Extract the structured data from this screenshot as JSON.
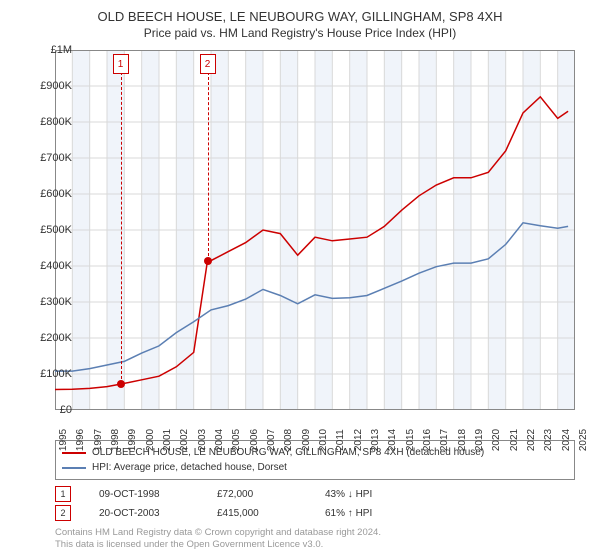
{
  "title": "OLD BEECH HOUSE, LE NEUBOURG WAY, GILLINGHAM, SP8 4XH",
  "subtitle": "Price paid vs. HM Land Registry's House Price Index (HPI)",
  "chart": {
    "type": "line",
    "background_color": "#ffffff",
    "grid_color": "#d9d9d9",
    "axis_color": "#888888",
    "alt_band_color": "#f0f4fa",
    "x_years": [
      1995,
      1996,
      1997,
      1998,
      1999,
      2000,
      2001,
      2002,
      2003,
      2004,
      2005,
      2006,
      2007,
      2008,
      2009,
      2010,
      2011,
      2012,
      2013,
      2014,
      2015,
      2016,
      2017,
      2018,
      2019,
      2020,
      2021,
      2022,
      2023,
      2024,
      2025
    ],
    "ylim": [
      0,
      1000000
    ],
    "ytick_step": 100000,
    "ytick_labels": [
      "£0",
      "£100K",
      "£200K",
      "£300K",
      "£400K",
      "£500K",
      "£600K",
      "£700K",
      "£800K",
      "£900K",
      "£1M"
    ],
    "series": [
      {
        "name": "OLD BEECH HOUSE, LE NEUBOURG WAY, GILLINGHAM, SP8 4XH (detached house)",
        "color": "#cc0000",
        "line_width": 1.5,
        "points_by_year": {
          "1995": 57000,
          "1996": 57500,
          "1997": 60000,
          "1998": 65000,
          "1998.78": 72000,
          "1999": 74000,
          "2000": 84000,
          "2001": 94000,
          "2002": 120000,
          "2003": 160000,
          "2003.8": 415000,
          "2004": 415000,
          "2005": 440000,
          "2006": 465000,
          "2007": 500000,
          "2008": 490000,
          "2009": 430000,
          "2010": 480000,
          "2011": 470000,
          "2012": 475000,
          "2013": 480000,
          "2014": 510000,
          "2015": 555000,
          "2016": 595000,
          "2017": 625000,
          "2018": 645000,
          "2019": 645000,
          "2020": 660000,
          "2021": 720000,
          "2022": 825000,
          "2023": 870000,
          "2024": 810000,
          "2024.6": 830000
        }
      },
      {
        "name": "HPI: Average price, detached house, Dorset",
        "color": "#5b7fb3",
        "line_width": 1.5,
        "points_by_year": {
          "1995": 108000,
          "1996": 108000,
          "1997": 115000,
          "1998": 125000,
          "1999": 135000,
          "2000": 158000,
          "2001": 178000,
          "2002": 215000,
          "2003": 245000,
          "2004": 278000,
          "2005": 290000,
          "2006": 308000,
          "2007": 335000,
          "2008": 318000,
          "2009": 295000,
          "2010": 320000,
          "2011": 310000,
          "2012": 312000,
          "2013": 318000,
          "2014": 338000,
          "2015": 358000,
          "2016": 380000,
          "2017": 398000,
          "2018": 408000,
          "2019": 408000,
          "2020": 420000,
          "2021": 460000,
          "2022": 520000,
          "2023": 512000,
          "2024": 505000,
          "2024.6": 510000
        }
      }
    ],
    "markers": [
      {
        "n": "1",
        "year": 1998.78,
        "price": 72000
      },
      {
        "n": "2",
        "year": 2003.8,
        "price": 415000
      }
    ]
  },
  "legend": [
    {
      "color": "#cc0000",
      "label": "OLD BEECH HOUSE, LE NEUBOURG WAY, GILLINGHAM, SP8 4XH (detached house)"
    },
    {
      "color": "#5b7fb3",
      "label": "HPI: Average price, detached house, Dorset"
    }
  ],
  "sales": [
    {
      "n": "1",
      "box_color": "#cc0000",
      "date": "09-OCT-1998",
      "price": "£72,000",
      "pct": "43% ↓ HPI"
    },
    {
      "n": "2",
      "box_color": "#cc0000",
      "date": "20-OCT-2003",
      "price": "£415,000",
      "pct": "61% ↑ HPI"
    }
  ],
  "attribution": {
    "line1": "Contains HM Land Registry data © Crown copyright and database right 2024.",
    "line2": "This data is licensed under the Open Government Licence v3.0."
  }
}
